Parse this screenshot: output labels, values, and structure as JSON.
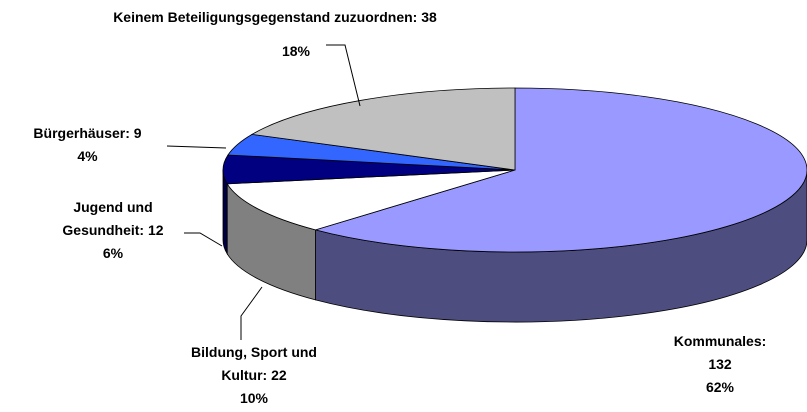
{
  "chart_data": {
    "type": "pie3d",
    "categories": [
      "Kommunales:",
      "Bildung, Sport und Kultur:",
      "Jugend und Gesundheit:",
      "Bürgerhäuser:",
      "Keinem Beteiligungsgegenstand zuzuordnen:"
    ],
    "values": [
      132,
      22,
      12,
      9,
      38
    ],
    "percent_labels": [
      "62%",
      "10%",
      "6%",
      "4%",
      "18%"
    ],
    "colors": [
      "#9999ff",
      "#ffffff",
      "#000080",
      "#3366ff",
      "#c0c0c0"
    ]
  }
}
